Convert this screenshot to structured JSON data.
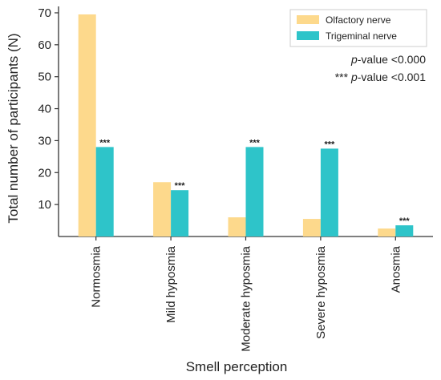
{
  "chart_data": {
    "type": "bar",
    "title": "",
    "xlabel": "Smell perception",
    "ylabel": "Total number of participants (N)",
    "ylim": [
      0,
      72
    ],
    "yticks": [
      10,
      20,
      30,
      40,
      50,
      60,
      70
    ],
    "categories": [
      "Normosmia",
      "Mild hyposmia",
      "Moderate hyposmia",
      "Severe hyposmia",
      "Anosmia"
    ],
    "series": [
      {
        "name": "Olfactory nerve",
        "color": "#fdd98c",
        "values": [
          69.5,
          17,
          6,
          5.5,
          2.5
        ]
      },
      {
        "name": "Trigeminal nerve",
        "color": "#2ec4c9",
        "values": [
          28,
          14.5,
          28,
          27.5,
          3.5
        ],
        "annotations": [
          "***",
          "***",
          "***",
          "***",
          "***"
        ]
      }
    ],
    "legend_position": "top-right",
    "notes": [
      {
        "prefix": "",
        "italic": "p",
        "suffix": "-value <0.000"
      },
      {
        "prefix": "*** ",
        "italic": "p",
        "suffix": "-value <0.001"
      }
    ],
    "grid": false
  }
}
